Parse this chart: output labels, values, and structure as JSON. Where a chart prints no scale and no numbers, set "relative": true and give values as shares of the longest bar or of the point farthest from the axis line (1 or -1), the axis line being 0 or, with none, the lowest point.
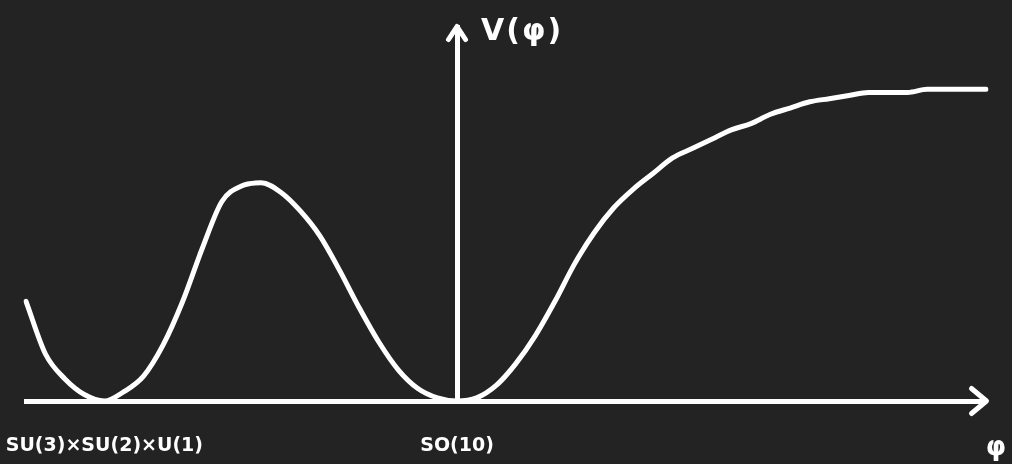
{
  "chart_data": {
    "type": "line",
    "relative": true,
    "xlabel": "φ",
    "ylabel": "V(φ)",
    "marker": "none",
    "line_style": "solid",
    "categories": [
      null,
      null,
      null,
      null,
      "SU(3)×SU(2)×U(1)",
      null,
      null,
      null,
      null,
      null,
      null,
      null,
      null,
      null,
      null,
      null,
      null,
      null,
      null,
      null,
      null,
      null,
      "SO(10)",
      null,
      null,
      null,
      null,
      null,
      null,
      null,
      null,
      null,
      null,
      null,
      null,
      null,
      null,
      null,
      null,
      null,
      null,
      null,
      null,
      null,
      null,
      null,
      null,
      null,
      null,
      null
    ],
    "series": [
      {
        "color": "#ffffff",
        "values": [
          0.32,
          0.15,
          0.07,
          0.02,
          0,
          0.03,
          0.08,
          0.18,
          0.32,
          0.49,
          0.64,
          0.69,
          0.7,
          0.67,
          0.61,
          0.53,
          0.42,
          0.3,
          0.19,
          0.1,
          0.04,
          0.01,
          0,
          0.01,
          0.05,
          0.12,
          0.21,
          0.32,
          0.44,
          0.54,
          0.62,
          0.68,
          0.73,
          0.78,
          0.81,
          0.84,
          0.87,
          0.89,
          0.92,
          0.94,
          0.96,
          0.97,
          0.98,
          0.99,
          0.99,
          0.99,
          1,
          1,
          1,
          1
        ]
      }
    ]
  }
}
